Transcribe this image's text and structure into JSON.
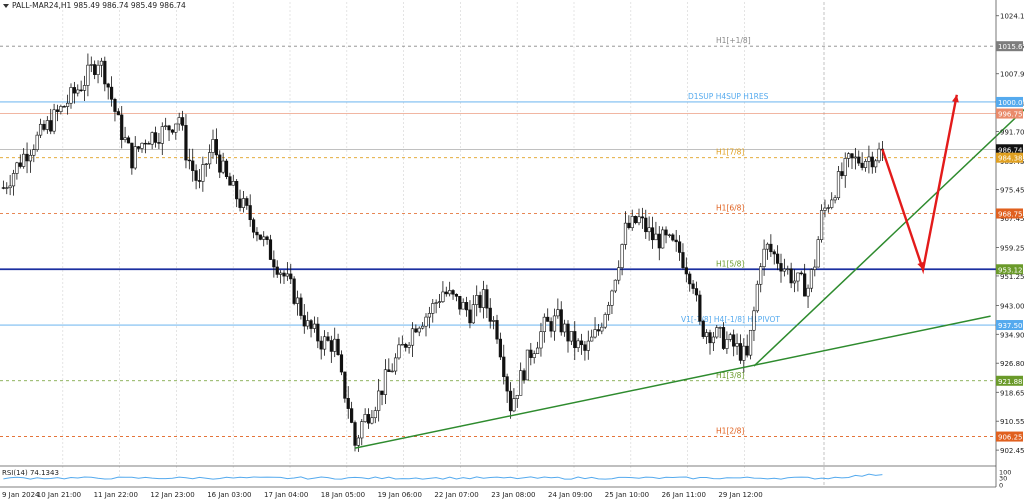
{
  "header": {
    "symbol_info": "PALL-MAR24,H1  985.49 986.74 985.49 986.74"
  },
  "colors": {
    "bull": "#111111",
    "bear": "#111111",
    "green_line": "#2e8b2e",
    "red_arrow": "#e31b1b",
    "blue_line": "#1a2fa0",
    "light_blue": "#55aaee",
    "salmon": "#e98a6a",
    "grid": "#d9d9d9"
  },
  "chart_data": {
    "type": "candlestick",
    "title": "PALL-MAR24,H1",
    "ohlc_last": {
      "open": 985.49,
      "high": 986.74,
      "low": 985.49,
      "close": 986.74
    },
    "ylim": [
      898,
      1028
    ],
    "y_ticks": [
      "1024.15",
      "1015.62",
      "1007.90",
      "999.70",
      "991.70",
      "983.45",
      "975.45",
      "967.45",
      "959.25",
      "951.25",
      "943.00",
      "934.90",
      "926.80",
      "918.65",
      "910.55",
      "902.45"
    ],
    "x_ticks": [
      "9 Jan 2024",
      "10 Jan 21:00",
      "11 Jan 22:00",
      "12 Jan 23:00",
      "16 Jan 03:00",
      "17 Jan 04:00",
      "18 Jan 05:00",
      "19 Jan 06:00",
      "22 Jan 07:00",
      "23 Jan 08:00",
      "24 Jan 09:00",
      "25 Jan 10:00",
      "26 Jan 11:00",
      "29 Jan 12:00"
    ],
    "price_path": [
      [
        0,
        976
      ],
      [
        3,
        985
      ],
      [
        6,
        992
      ],
      [
        9,
        999
      ],
      [
        12,
        1006
      ],
      [
        14,
        1012
      ],
      [
        15,
        1008
      ],
      [
        17,
        994
      ],
      [
        19,
        984
      ],
      [
        21,
        990
      ],
      [
        24,
        992
      ],
      [
        26,
        996
      ],
      [
        27,
        986
      ],
      [
        29,
        976
      ],
      [
        30,
        983
      ],
      [
        31,
        988
      ],
      [
        33,
        978
      ],
      [
        35,
        972
      ],
      [
        37,
        966
      ],
      [
        39,
        959
      ],
      [
        41,
        953
      ],
      [
        43,
        946
      ],
      [
        45,
        937
      ],
      [
        47,
        933
      ],
      [
        49,
        932
      ],
      [
        50,
        922
      ],
      [
        51,
        915
      ],
      [
        52,
        904
      ],
      [
        53,
        910
      ],
      [
        55,
        916
      ],
      [
        57,
        924
      ],
      [
        59,
        931
      ],
      [
        61,
        938
      ],
      [
        63,
        941
      ],
      [
        65,
        947
      ],
      [
        67,
        944
      ],
      [
        69,
        941
      ],
      [
        71,
        945
      ],
      [
        73,
        936
      ],
      [
        74,
        926
      ],
      [
        75,
        915
      ],
      [
        76,
        920
      ],
      [
        78,
        930
      ],
      [
        80,
        937
      ],
      [
        82,
        939
      ],
      [
        84,
        933
      ],
      [
        86,
        930
      ],
      [
        88,
        936
      ],
      [
        90,
        948
      ],
      [
        92,
        964
      ],
      [
        94,
        967
      ],
      [
        96,
        962
      ],
      [
        98,
        961
      ],
      [
        100,
        958
      ],
      [
        102,
        950
      ],
      [
        103,
        937
      ],
      [
        105,
        935
      ],
      [
        107,
        933
      ],
      [
        109,
        930
      ],
      [
        110,
        928
      ],
      [
        111,
        941
      ],
      [
        112,
        956
      ],
      [
        113,
        959
      ],
      [
        115,
        955
      ],
      [
        117,
        950
      ],
      [
        119,
        948
      ],
      [
        120,
        955
      ],
      [
        121,
        968
      ],
      [
        123,
        976
      ],
      [
        125,
        983
      ],
      [
        127,
        984
      ],
      [
        129,
        985
      ],
      [
        130,
        986.7
      ]
    ],
    "levels": [
      {
        "price": 1015.62,
        "label": "H1[+1/8]",
        "tag": "1015.62",
        "kind": "murrey",
        "color": "#888888"
      },
      {
        "price": 1000.0,
        "label": "D1SUP H4SUP H1RES",
        "tag": "1000.00",
        "kind": "sr",
        "color": "#55aaee"
      },
      {
        "price": 996.75,
        "label": "",
        "tag": "996.75",
        "kind": "res",
        "color": "#e98a6a"
      },
      {
        "price": 986.74,
        "label": "",
        "tag": "986.74",
        "kind": "current",
        "color": "#111111"
      },
      {
        "price": 984.38,
        "label": "H1[7/8]",
        "tag": "984.38",
        "kind": "murrey",
        "color": "#e0a020"
      },
      {
        "price": 968.75,
        "label": "H1[6/8]",
        "tag": "968.75",
        "kind": "murrey",
        "color": "#e0601e"
      },
      {
        "price": 953.12,
        "label": "H1[5/8]",
        "tag": "953.12",
        "kind": "main",
        "color": "#1a2fa0"
      },
      {
        "price": 937.5,
        "label": "V1[-1/8] H4[-1/8] H1PIVOT",
        "tag": "937.50",
        "kind": "pivot",
        "color": "#55aaee"
      },
      {
        "price": 921.88,
        "label": "H1[3/8]",
        "tag": "921.88",
        "kind": "murrey",
        "color": "#6a9a2a"
      },
      {
        "price": 906.25,
        "label": "H1[2/8]",
        "tag": "906.25",
        "kind": "murrey",
        "color": "#e0601e"
      }
    ],
    "trendlines": [
      {
        "from": [
          52,
          903
        ],
        "to": [
          146,
          940
        ]
      },
      {
        "from": [
          111,
          926
        ],
        "to": [
          163,
          1019.5
        ]
      }
    ],
    "projection": {
      "points": [
        [
          130,
          986.7
        ],
        [
          136,
          953
        ],
        [
          141,
          1002
        ]
      ]
    },
    "rsi": {
      "label": "RSI(14) 74.1343",
      "value": 74.1343,
      "levels": [
        "100",
        "30",
        "0"
      ]
    }
  }
}
